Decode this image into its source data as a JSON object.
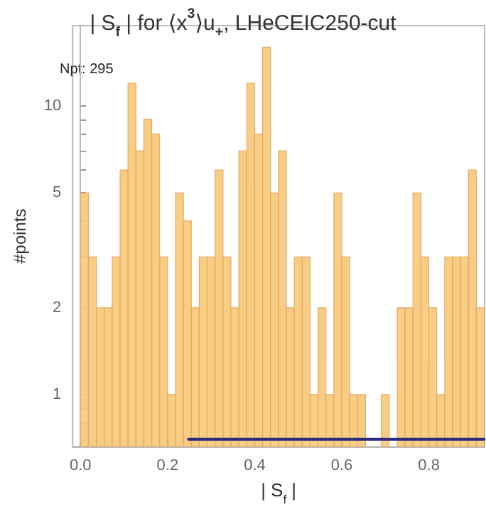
{
  "chart_data": {
    "type": "histogram",
    "title": "| S$_{f}$ | for ⟨x$^{3}$⟩u$_{+}$, LHeCEIC250-cut",
    "xlabel": "| S$_{f}$ |",
    "ylabel": "#points",
    "annotations": [
      "Npt: 295"
    ],
    "color": "#f8c878",
    "bins": [
      0,
      0.0182,
      0.0364,
      0.0545,
      0.0727,
      0.0909,
      0.1091,
      0.1273,
      0.1455,
      0.1636,
      0.1818,
      0.2,
      0.2182,
      0.2364,
      0.2545,
      0.2727,
      0.2909,
      0.3091,
      0.3273,
      0.3455,
      0.3636,
      0.3818,
      0.4,
      0.4182,
      0.4364,
      0.4545,
      0.4727,
      0.4909,
      0.5091,
      0.5273,
      0.5455,
      0.5636,
      0.5818,
      0.6,
      0.6182,
      0.6364,
      0.6545,
      0.6727,
      0.6909,
      0.7091,
      0.7273,
      0.7455,
      0.7636,
      0.7818,
      0.8,
      0.8182,
      0.8364,
      0.8545,
      0.8727,
      0.8909,
      0.9091,
      0.9273
    ],
    "values": [
      5,
      3,
      2,
      2,
      3,
      6,
      12,
      7,
      9,
      8,
      3,
      1,
      5,
      4,
      2,
      3,
      3,
      6,
      3,
      2,
      7,
      12,
      8,
      16,
      5,
      7,
      2,
      3,
      3,
      1,
      2,
      1,
      5,
      3,
      1,
      1,
      null,
      null,
      1,
      null,
      2,
      2,
      5,
      3,
      2,
      1,
      3,
      3,
      3,
      6,
      2
    ],
    "series": [
      {
        "type": "line",
        "color": "#2b2b80",
        "x": [
          0.248,
          0.927
        ],
        "values": [
          0.7,
          0.7
        ]
      }
    ],
    "log": "y",
    "marker": "none",
    "line_style": "solid",
    "xlim": [
      -0.018,
      0.928
    ],
    "xticks": [
      {
        "value": 0,
        "label": "0.0"
      },
      0.2,
      0.4,
      0.6,
      0.8
    ],
    "ylim": [
      0.66,
      19
    ],
    "yticks": [
      {
        "value": 0.7,
        "label": null
      },
      {
        "value": 0.8,
        "label": null
      },
      {
        "value": 0.9,
        "label": null
      },
      1,
      2,
      {
        "value": 3,
        "label": null
      },
      {
        "value": 4,
        "label": null
      },
      5,
      {
        "value": 6,
        "label": null
      },
      {
        "value": 7,
        "label": null
      },
      {
        "value": 8,
        "label": null
      },
      {
        "value": 9,
        "label": null
      },
      10
    ]
  }
}
